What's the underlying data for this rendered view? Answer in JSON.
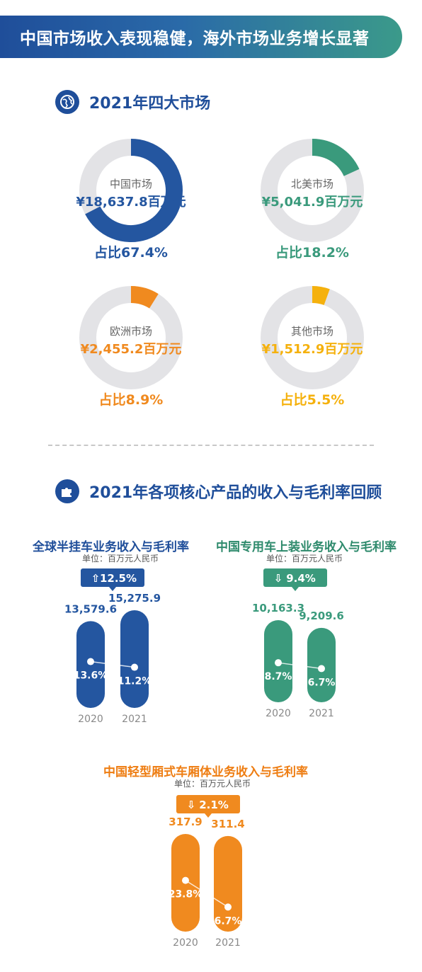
{
  "header": {
    "title": "中国市场收入表现稳健，海外市场业务增长显著"
  },
  "section1": {
    "title": "2021年四大市场",
    "icon": "globe-icon"
  },
  "section2": {
    "title": "2021年各项核心产品的收入与毛利率回顾",
    "icon": "puzzle-icon"
  },
  "colors": {
    "blue": "#2456a0",
    "green": "#3a9a7c",
    "orange": "#f08a1f",
    "yellow": "#f5a623",
    "ring": "#e3e3e6"
  },
  "chart_data": [
    {
      "type": "pie",
      "title": "2021年四大市场",
      "slices": [
        {
          "name": "中国市场",
          "value_label": "¥18,637.8百万元",
          "share": 67.4,
          "share_label": "占比67.4%",
          "color": "#2456a0"
        },
        {
          "name": "北美市场",
          "value_label": "¥5,041.9百万元",
          "share": 18.2,
          "share_label": "占比18.2%",
          "color": "#3a9a7c"
        },
        {
          "name": "欧洲市场",
          "value_label": "¥2,455.2百万元",
          "share": 8.9,
          "share_label": "占比8.9%",
          "color": "#f08a1f"
        },
        {
          "name": "其他市场",
          "value_label": "¥1,512.9百万元",
          "share": 5.5,
          "share_label": "占比5.5%",
          "color": "#f5b10d"
        }
      ]
    },
    {
      "type": "bar",
      "title": "全球半挂车业务收入与毛利率",
      "unit": "单位：百万元人民币",
      "change": "12.5%",
      "direction": "up",
      "categories": [
        "2020",
        "2021"
      ],
      "values": [
        13579.6,
        15275.9
      ],
      "value_labels": [
        "13,579.6",
        "15,275.9"
      ],
      "margins": [
        13.6,
        11.2
      ],
      "margin_labels": [
        "13.6%",
        "11.2%"
      ],
      "color": "#2456a0"
    },
    {
      "type": "bar",
      "title": "中国专用车上装业务收入与毛利率",
      "unit": "单位：百万元人民币",
      "change": "9.4%",
      "direction": "down",
      "categories": [
        "2020",
        "2021"
      ],
      "values": [
        10163.3,
        9209.6
      ],
      "value_labels": [
        "10,163.3",
        "9,209.6"
      ],
      "margins": [
        8.7,
        6.7
      ],
      "margin_labels": [
        "8.7%",
        "6.7%"
      ],
      "color": "#3a9a7c"
    },
    {
      "type": "bar",
      "title": "中国轻型厢式车厢体业务收入与毛利率",
      "unit": "单位：百万元人民币",
      "change": "2.1%",
      "direction": "down",
      "categories": [
        "2020",
        "2021"
      ],
      "values": [
        317.9,
        311.4
      ],
      "value_labels": [
        "317.9",
        "311.4"
      ],
      "margins": [
        23.8,
        6.7
      ],
      "margin_labels": [
        "23.8%",
        "6.7%"
      ],
      "color": "#f08a1f"
    }
  ]
}
